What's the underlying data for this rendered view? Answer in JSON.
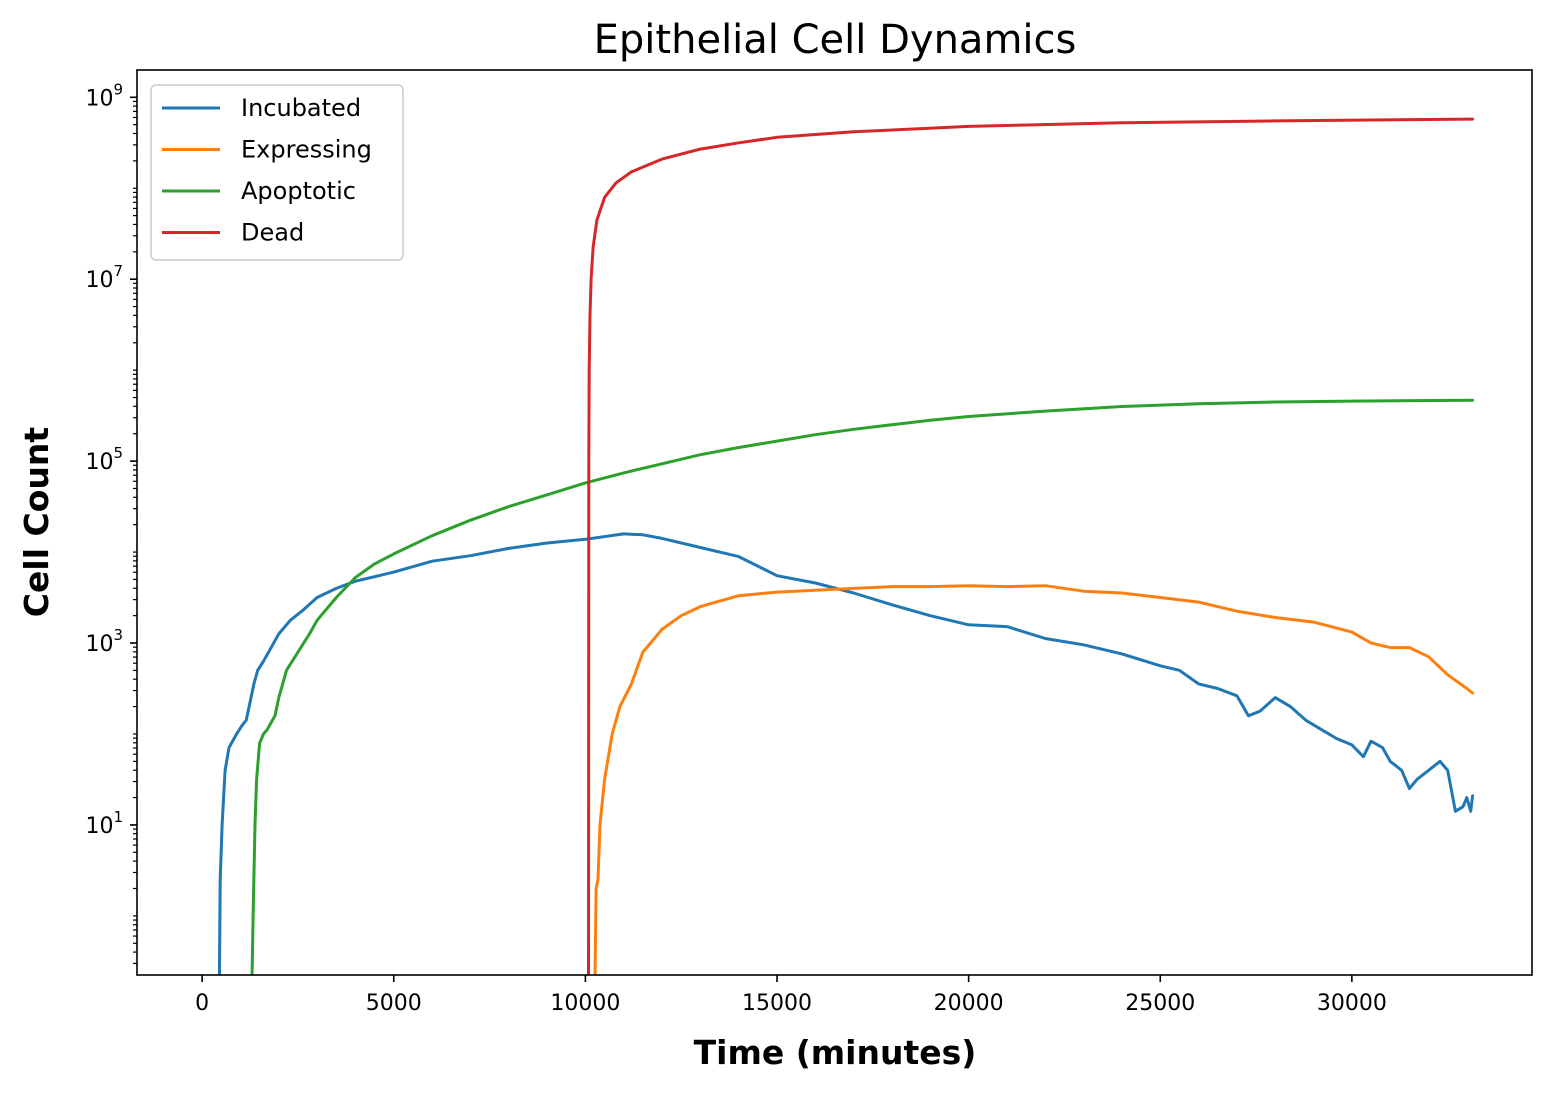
{
  "chart_data": {
    "type": "line",
    "title": "Epithelial Cell Dynamics",
    "xlabel": "Time (minutes)",
    "ylabel": "Cell Count",
    "yscale": "log",
    "xlim": [
      -1700,
      34700
    ],
    "ylim_log10": [
      -0.65,
      9.3
    ],
    "xticks": [
      0,
      5000,
      10000,
      15000,
      20000,
      25000,
      30000
    ],
    "xtick_labels": [
      "0",
      "5000",
      "10000",
      "15000",
      "20000",
      "25000",
      "30000"
    ],
    "yticks": [
      {
        "base": "10",
        "exp": "1",
        "log10": 1
      },
      {
        "base": "10",
        "exp": "3",
        "log10": 3
      },
      {
        "base": "10",
        "exp": "5",
        "log10": 5
      },
      {
        "base": "10",
        "exp": "7",
        "log10": 7
      },
      {
        "base": "10",
        "exp": "9",
        "log10": 9
      }
    ],
    "grid": false,
    "legend_position": "top-left",
    "series": [
      {
        "name": "Incubated",
        "color": "#1f77b4",
        "points": [
          [
            450,
            -0.7
          ],
          [
            470,
            0.4
          ],
          [
            520,
            1.0
          ],
          [
            600,
            1.6
          ],
          [
            700,
            1.85
          ],
          [
            900,
            2.0
          ],
          [
            1050,
            2.1
          ],
          [
            1150,
            2.15
          ],
          [
            1250,
            2.35
          ],
          [
            1350,
            2.55
          ],
          [
            1450,
            2.7
          ],
          [
            1600,
            2.8
          ],
          [
            1800,
            2.95
          ],
          [
            2000,
            3.1
          ],
          [
            2300,
            3.25
          ],
          [
            2600,
            3.35
          ],
          [
            3000,
            3.5
          ],
          [
            3500,
            3.6
          ],
          [
            4000,
            3.68
          ],
          [
            5000,
            3.78
          ],
          [
            6000,
            3.9
          ],
          [
            7000,
            3.96
          ],
          [
            8000,
            4.04
          ],
          [
            9000,
            4.1
          ],
          [
            10000,
            4.14
          ],
          [
            11000,
            4.2
          ],
          [
            11500,
            4.19
          ],
          [
            12000,
            4.15
          ],
          [
            13000,
            4.05
          ],
          [
            14000,
            3.95
          ],
          [
            15000,
            3.74
          ],
          [
            16000,
            3.66
          ],
          [
            17000,
            3.55
          ],
          [
            18000,
            3.42
          ],
          [
            19000,
            3.3
          ],
          [
            20000,
            3.2
          ],
          [
            21000,
            3.18
          ],
          [
            22000,
            3.05
          ],
          [
            23000,
            2.98
          ],
          [
            24000,
            2.88
          ],
          [
            25000,
            2.75
          ],
          [
            25500,
            2.7
          ],
          [
            26000,
            2.55
          ],
          [
            26500,
            2.5
          ],
          [
            27000,
            2.42
          ],
          [
            27300,
            2.2
          ],
          [
            27600,
            2.25
          ],
          [
            28000,
            2.4
          ],
          [
            28400,
            2.3
          ],
          [
            28800,
            2.15
          ],
          [
            29200,
            2.05
          ],
          [
            29600,
            1.95
          ],
          [
            30000,
            1.88
          ],
          [
            30300,
            1.75
          ],
          [
            30500,
            1.92
          ],
          [
            30800,
            1.85
          ],
          [
            31000,
            1.7
          ],
          [
            31300,
            1.6
          ],
          [
            31500,
            1.4
          ],
          [
            31700,
            1.5
          ],
          [
            32000,
            1.6
          ],
          [
            32300,
            1.7
          ],
          [
            32500,
            1.6
          ],
          [
            32700,
            1.15
          ],
          [
            32900,
            1.2
          ],
          [
            33000,
            1.3
          ],
          [
            33100,
            1.15
          ],
          [
            33150,
            1.32
          ]
        ]
      },
      {
        "name": "Expressing",
        "color": "#ff7f0e",
        "points": [
          [
            10250,
            -0.7
          ],
          [
            10280,
            0.3
          ],
          [
            10330,
            0.4
          ],
          [
            10380,
            1.0
          ],
          [
            10500,
            1.5
          ],
          [
            10700,
            2.0
          ],
          [
            10900,
            2.3
          ],
          [
            11200,
            2.55
          ],
          [
            11500,
            2.9
          ],
          [
            12000,
            3.15
          ],
          [
            12500,
            3.3
          ],
          [
            13000,
            3.4
          ],
          [
            14000,
            3.52
          ],
          [
            15000,
            3.56
          ],
          [
            16000,
            3.58
          ],
          [
            17000,
            3.6
          ],
          [
            18000,
            3.62
          ],
          [
            19000,
            3.62
          ],
          [
            20000,
            3.63
          ],
          [
            21000,
            3.62
          ],
          [
            22000,
            3.63
          ],
          [
            23000,
            3.57
          ],
          [
            24000,
            3.55
          ],
          [
            25000,
            3.5
          ],
          [
            26000,
            3.45
          ],
          [
            27000,
            3.35
          ],
          [
            28000,
            3.28
          ],
          [
            29000,
            3.23
          ],
          [
            30000,
            3.12
          ],
          [
            30500,
            3.0
          ],
          [
            31000,
            2.95
          ],
          [
            31500,
            2.95
          ],
          [
            32000,
            2.85
          ],
          [
            32500,
            2.65
          ],
          [
            33000,
            2.5
          ],
          [
            33150,
            2.45
          ]
        ]
      },
      {
        "name": "Apoptotic",
        "color": "#2ca02c",
        "points": [
          [
            1300,
            -0.7
          ],
          [
            1330,
            0.0
          ],
          [
            1380,
            1.0
          ],
          [
            1420,
            1.5
          ],
          [
            1500,
            1.9
          ],
          [
            1600,
            2.0
          ],
          [
            1700,
            2.05
          ],
          [
            1900,
            2.2
          ],
          [
            2000,
            2.4
          ],
          [
            2200,
            2.7
          ],
          [
            2500,
            2.9
          ],
          [
            2800,
            3.1
          ],
          [
            3000,
            3.25
          ],
          [
            3500,
            3.5
          ],
          [
            4000,
            3.72
          ],
          [
            4500,
            3.87
          ],
          [
            5000,
            3.98
          ],
          [
            6000,
            4.18
          ],
          [
            7000,
            4.35
          ],
          [
            8000,
            4.5
          ],
          [
            9000,
            4.63
          ],
          [
            10000,
            4.76
          ],
          [
            11000,
            4.87
          ],
          [
            12000,
            4.97
          ],
          [
            13000,
            5.07
          ],
          [
            14000,
            5.15
          ],
          [
            15000,
            5.22
          ],
          [
            16000,
            5.29
          ],
          [
            17000,
            5.35
          ],
          [
            18000,
            5.4
          ],
          [
            19000,
            5.45
          ],
          [
            20000,
            5.49
          ],
          [
            22000,
            5.55
          ],
          [
            24000,
            5.6
          ],
          [
            26000,
            5.63
          ],
          [
            28000,
            5.65
          ],
          [
            30000,
            5.66
          ],
          [
            33150,
            5.67
          ]
        ]
      },
      {
        "name": "Dead",
        "color": "#d62728",
        "points": [
          [
            10080,
            -0.7
          ],
          [
            10085,
            3.0
          ],
          [
            10090,
            5.0
          ],
          [
            10100,
            6.0
          ],
          [
            10120,
            6.6
          ],
          [
            10150,
            7.0
          ],
          [
            10200,
            7.35
          ],
          [
            10300,
            7.65
          ],
          [
            10500,
            7.9
          ],
          [
            10800,
            8.06
          ],
          [
            11200,
            8.18
          ],
          [
            12000,
            8.32
          ],
          [
            13000,
            8.43
          ],
          [
            14000,
            8.5
          ],
          [
            15000,
            8.56
          ],
          [
            17000,
            8.62
          ],
          [
            20000,
            8.68
          ],
          [
            24000,
            8.72
          ],
          [
            28000,
            8.74
          ],
          [
            33150,
            8.76
          ]
        ]
      }
    ]
  }
}
